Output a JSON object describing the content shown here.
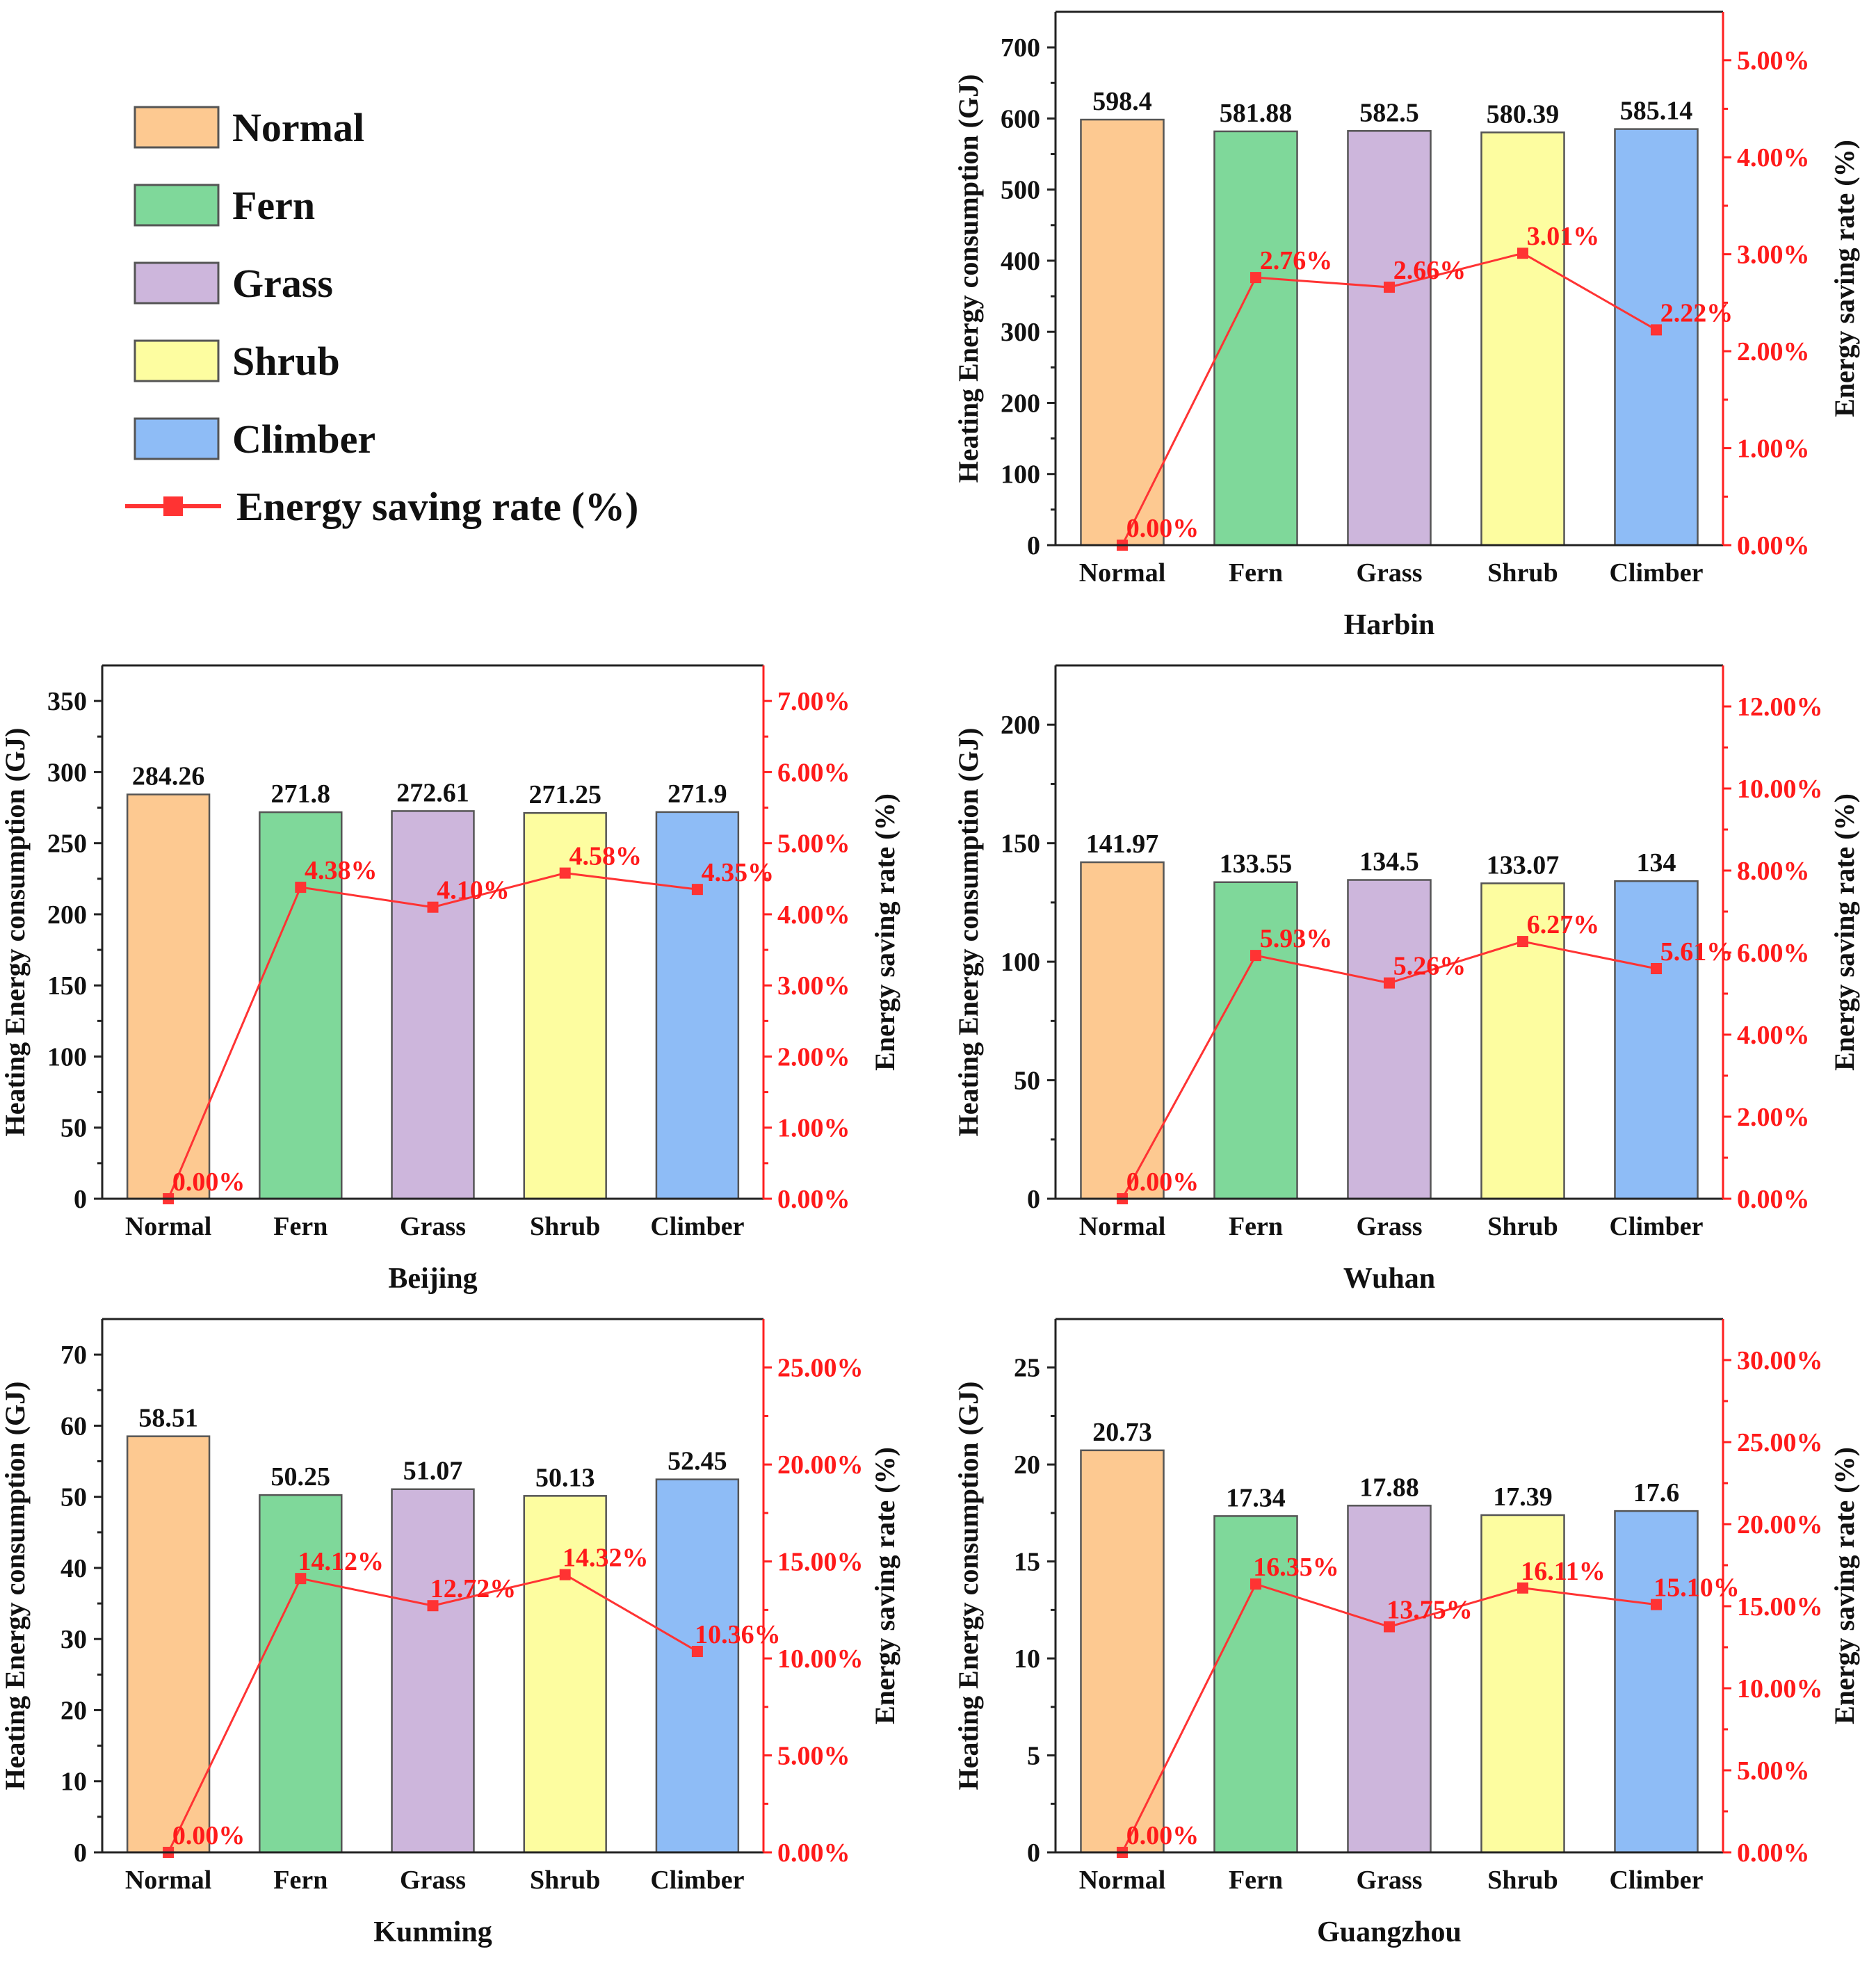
{
  "legend": {
    "items": [
      {
        "label": "Normal",
        "color": "#fdc991"
      },
      {
        "label": "Fern",
        "color": "#7fd89a"
      },
      {
        "label": "Grass",
        "color": "#cdb6dc"
      },
      {
        "label": "Shrub",
        "color": "#fdfda0"
      },
      {
        "label": "Climber",
        "color": "#8ebcf6"
      }
    ],
    "line_label": "Energy saving rate (%)",
    "line_color": "#ff3333"
  },
  "chart_data": [
    {
      "type": "bar+line",
      "title": "Harbin",
      "categories": [
        "Normal",
        "Fern",
        "Grass",
        "Shrub",
        "Climber"
      ],
      "values": [
        598.4,
        581.88,
        582.5,
        580.39,
        585.14
      ],
      "value_labels": [
        "598.4",
        "581.88",
        "582.5",
        "580.39",
        "585.14"
      ],
      "rates": [
        0.0,
        2.76,
        2.66,
        3.01,
        2.22
      ],
      "rate_labels": [
        "0.00%",
        "2.76%",
        "2.66%",
        "3.01%",
        "2.22%"
      ],
      "ylabel": "Heating Energy consumption (GJ)",
      "y2label": "Energy saving rate (%)",
      "ylim": [
        0,
        750
      ],
      "yticks": [
        0,
        100,
        200,
        300,
        400,
        500,
        600,
        700
      ],
      "y2lim": [
        0,
        5.5
      ],
      "y2ticks": [
        0,
        1,
        2,
        3,
        4,
        5
      ],
      "y2tick_labels": [
        "0.00%",
        "1.00%",
        "2.00%",
        "3.00%",
        "4.00%",
        "5.00%"
      ]
    },
    {
      "type": "bar+line",
      "title": "Beijing",
      "categories": [
        "Normal",
        "Fern",
        "Grass",
        "Shrub",
        "Climber"
      ],
      "values": [
        284.26,
        271.8,
        272.61,
        271.25,
        271.9
      ],
      "value_labels": [
        "284.26",
        "271.8",
        "272.61",
        "271.25",
        "271.9"
      ],
      "rates": [
        0.0,
        4.38,
        4.1,
        4.58,
        4.35
      ],
      "rate_labels": [
        "0.00%",
        "4.38%",
        "4.10%",
        "4.58%",
        "4.35%"
      ],
      "ylabel": "Heating Energy consumption (GJ)",
      "y2label": "Energy saving rate (%)",
      "ylim": [
        0,
        375
      ],
      "yticks": [
        0,
        50,
        100,
        150,
        200,
        250,
        300,
        350
      ],
      "y2lim": [
        0,
        7.5
      ],
      "y2ticks": [
        0,
        1,
        2,
        3,
        4,
        5,
        6,
        7
      ],
      "y2tick_labels": [
        "0.00%",
        "1.00%",
        "2.00%",
        "3.00%",
        "4.00%",
        "5.00%",
        "6.00%",
        "7.00%"
      ]
    },
    {
      "type": "bar+line",
      "title": "Wuhan",
      "categories": [
        "Normal",
        "Fern",
        "Grass",
        "Shrub",
        "Climber"
      ],
      "values": [
        141.97,
        133.55,
        134.5,
        133.07,
        134
      ],
      "value_labels": [
        "141.97",
        "133.55",
        "134.5",
        "133.07",
        "134"
      ],
      "rates": [
        0.0,
        5.93,
        5.26,
        6.27,
        5.61
      ],
      "rate_labels": [
        "0.00%",
        "5.93%",
        "5.26%",
        "6.27%",
        "5.61%"
      ],
      "ylabel": "Heating Energy consumption (GJ)",
      "y2label": "Energy saving rate (%)",
      "ylim": [
        0,
        225
      ],
      "yticks": [
        0,
        50,
        100,
        150,
        200
      ],
      "y2lim": [
        0,
        13
      ],
      "y2ticks": [
        0,
        2,
        4,
        6,
        8,
        10,
        12
      ],
      "y2tick_labels": [
        "0.00%",
        "2.00%",
        "4.00%",
        "6.00%",
        "8.00%",
        "10.00%",
        "12.00%"
      ]
    },
    {
      "type": "bar+line",
      "title": "Kunming",
      "categories": [
        "Normal",
        "Fern",
        "Grass",
        "Shrub",
        "Climber"
      ],
      "values": [
        58.51,
        50.25,
        51.07,
        50.13,
        52.45
      ],
      "value_labels": [
        "58.51",
        "50.25",
        "51.07",
        "50.13",
        "52.45"
      ],
      "rates": [
        0.0,
        14.12,
        12.72,
        14.32,
        10.36
      ],
      "rate_labels": [
        "0.00%",
        "14.12%",
        "12.72%",
        "14.32%",
        "10.36%"
      ],
      "ylabel": "Heating Energy consumption (GJ)",
      "y2label": "Energy saving rate (%)",
      "ylim": [
        0,
        75
      ],
      "yticks": [
        0,
        10,
        20,
        30,
        40,
        50,
        60,
        70
      ],
      "y2lim": [
        0,
        27.5
      ],
      "y2ticks": [
        0,
        5,
        10,
        15,
        20,
        25
      ],
      "y2tick_labels": [
        "0.00%",
        "5.00%",
        "10.00%",
        "15.00%",
        "20.00%",
        "25.00%"
      ]
    },
    {
      "type": "bar+line",
      "title": "Guangzhou",
      "categories": [
        "Normal",
        "Fern",
        "Grass",
        "Shrub",
        "Climber"
      ],
      "values": [
        20.73,
        17.34,
        17.88,
        17.39,
        17.6
      ],
      "value_labels": [
        "20.73",
        "17.34",
        "17.88",
        "17.39",
        "17.6"
      ],
      "rates": [
        0.0,
        16.35,
        13.75,
        16.11,
        15.1
      ],
      "rate_labels": [
        "0.00%",
        "16.35%",
        "13.75%",
        "16.11%",
        "15.10%"
      ],
      "ylabel": "Heating Energy consumption (GJ)",
      "y2label": "Energy saving rate (%)",
      "ylim": [
        0,
        27.5
      ],
      "yticks": [
        0,
        5,
        10,
        15,
        20,
        25
      ],
      "y2lim": [
        0,
        32.5
      ],
      "y2ticks": [
        0,
        5,
        10,
        15,
        20,
        25,
        30
      ],
      "y2tick_labels": [
        "0.00%",
        "5.00%",
        "10.00%",
        "15.00%",
        "20.00%",
        "25.00%",
        "30.00%"
      ]
    }
  ]
}
